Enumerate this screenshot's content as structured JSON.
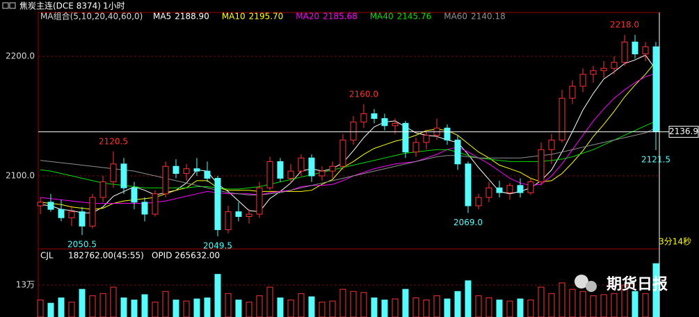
{
  "header": {
    "symbol": "焦炭主连(DCE 8374)",
    "period": "1小时",
    "indicator": "MA组合(5,10,20,40,60,0)",
    "countdown": "3分14秒",
    "watermark": "期货日报"
  },
  "chart_data": [
    {
      "type": "candlestick",
      "up_color": "#ff3232",
      "down_color": "#54fcfc",
      "open": [
        2075,
        2078,
        2072,
        2065,
        2070,
        2058,
        2082,
        2095,
        2110,
        2090,
        2078,
        2068,
        2085,
        2108,
        2102,
        2106,
        2104,
        2098,
        2055,
        2070,
        2066,
        2068,
        2090,
        2112,
        2098,
        2104,
        2115,
        2100,
        2104,
        2108,
        2130,
        2145,
        2152,
        2148,
        2142,
        2144,
        2120,
        2128,
        2134,
        2140,
        2130,
        2110,
        2075,
        2082,
        2090,
        2086,
        2092,
        2086,
        2095,
        2122,
        2130,
        2165,
        2175,
        2185,
        2188,
        2190,
        2195,
        2212,
        2202,
        2208
      ],
      "high": [
        2082,
        2085,
        2080,
        2075,
        2074,
        2085,
        2100,
        2120.5,
        2115,
        2095,
        2082,
        2088,
        2112,
        2114,
        2110,
        2115,
        2112,
        2100,
        2075,
        2078,
        2072,
        2095,
        2116,
        2115,
        2110,
        2118,
        2118,
        2108,
        2112,
        2135,
        2150,
        2160,
        2156,
        2152,
        2148,
        2146,
        2132,
        2138,
        2148,
        2143,
        2134,
        2112,
        2085,
        2095,
        2096,
        2094,
        2098,
        2098,
        2128,
        2135,
        2172,
        2180,
        2190,
        2192,
        2196,
        2200,
        2218,
        2218,
        2212,
        2212
      ],
      "low": [
        2068,
        2070,
        2062,
        2058,
        2050.5,
        2056,
        2078,
        2090,
        2085,
        2072,
        2062,
        2066,
        2082,
        2098,
        2096,
        2100,
        2095,
        2049.5,
        2052,
        2062,
        2060,
        2065,
        2088,
        2095,
        2094,
        2100,
        2095,
        2096,
        2098,
        2105,
        2126,
        2140,
        2144,
        2138,
        2135,
        2115,
        2116,
        2122,
        2130,
        2126,
        2105,
        2069,
        2072,
        2078,
        2082,
        2080,
        2082,
        2084,
        2092,
        2110,
        2128,
        2160,
        2170,
        2178,
        2182,
        2185,
        2192,
        2198,
        2196,
        2121.5
      ],
      "close": [
        2078,
        2072,
        2065,
        2070,
        2058,
        2082,
        2095,
        2110,
        2090,
        2078,
        2068,
        2085,
        2108,
        2102,
        2106,
        2104,
        2098,
        2055,
        2070,
        2066,
        2068,
        2090,
        2112,
        2098,
        2104,
        2115,
        2100,
        2104,
        2108,
        2130,
        2145,
        2152,
        2148,
        2142,
        2144,
        2120,
        2128,
        2134,
        2140,
        2130,
        2110,
        2075,
        2082,
        2090,
        2086,
        2092,
        2086,
        2095,
        2122,
        2130,
        2165,
        2175,
        2185,
        2188,
        2190,
        2195,
        2212,
        2202,
        2208,
        2136.9
      ],
      "series": [
        {
          "name": "MA5",
          "color": "#ffffff",
          "current": {
            "value": 2188.9,
            "label": "2188.90"
          },
          "values": [
            2076,
            2075,
            2072,
            2071,
            2069,
            2069,
            2074,
            2083,
            2087,
            2091,
            2088,
            2084,
            2086,
            2088,
            2094,
            2105,
            2104,
            2093,
            2087,
            2079,
            2071,
            2070,
            2081,
            2087,
            2094,
            2104,
            2106,
            2104,
            2106,
            2111,
            2121,
            2132,
            2141,
            2145,
            2146,
            2141,
            2136,
            2134,
            2133,
            2130,
            2128,
            2118,
            2107,
            2097,
            2087,
            2085,
            2087,
            2090,
            2096,
            2105,
            2120,
            2137,
            2155,
            2169,
            2181,
            2187,
            2194,
            2197,
            2201,
            2188.9
          ]
        },
        {
          "name": "MA10",
          "color": "#ffff00",
          "current": {
            "value": 2195.7,
            "label": "2195.70"
          },
          "values": [
            2078,
            2077,
            2076,
            2074,
            2073,
            2072,
            2073,
            2077,
            2079,
            2080,
            2081,
            2082,
            2085,
            2088,
            2090,
            2096,
            2096,
            2090,
            2088,
            2088,
            2088,
            2087,
            2087,
            2087,
            2087,
            2087,
            2088,
            2093,
            2097,
            2107,
            2112,
            2118,
            2123,
            2126,
            2129,
            2131,
            2134,
            2138,
            2139,
            2138,
            2134,
            2127,
            2120,
            2115,
            2109,
            2106,
            2103,
            2098,
            2095,
            2096,
            2102,
            2111,
            2121,
            2133,
            2143,
            2154,
            2166,
            2176,
            2185,
            2195.7
          ]
        },
        {
          "name": "MA20",
          "color": "#ff00ff",
          "current": {
            "value": 2185.68,
            "label": "2185.68"
          },
          "values": [
            2082,
            2081,
            2080,
            2079,
            2078,
            2077,
            2077,
            2077,
            2077,
            2077,
            2077,
            2078,
            2079,
            2081,
            2083,
            2085,
            2087,
            2086,
            2085,
            2085,
            2085,
            2084,
            2086,
            2087,
            2088,
            2091,
            2092,
            2092,
            2093,
            2096,
            2100,
            2103,
            2106,
            2108,
            2110,
            2111,
            2112,
            2115,
            2118,
            2122,
            2124,
            2120,
            2115,
            2110,
            2104,
            2098,
            2094,
            2092,
            2093,
            2100,
            2110,
            2122,
            2134,
            2146,
            2156,
            2165,
            2172,
            2178,
            2183,
            2185.68
          ]
        },
        {
          "name": "MA40",
          "color": "#00e000",
          "current": {
            "value": 2145.76,
            "label": "2145.76"
          },
          "values": [
            2105,
            2104,
            2102,
            2100,
            2098,
            2096,
            2094,
            2093,
            2092,
            2091,
            2090,
            2090,
            2090,
            2090,
            2090,
            2091,
            2091,
            2090,
            2089,
            2089,
            2090,
            2091,
            2093,
            2095,
            2097,
            2099,
            2101,
            2103,
            2105,
            2107,
            2109,
            2111,
            2113,
            2115,
            2117,
            2119,
            2120,
            2121,
            2122,
            2122,
            2120,
            2117,
            2115,
            2114,
            2113,
            2112,
            2112,
            2112,
            2112,
            2113,
            2114,
            2116,
            2119,
            2122,
            2126,
            2130,
            2134,
            2138,
            2142,
            2145.76
          ]
        },
        {
          "name": "MA60",
          "color": "#909090",
          "current": {
            "value": 2140.18,
            "label": "2140.18"
          },
          "values": [
            2113,
            2112,
            2111,
            2110,
            2109,
            2108,
            2107,
            2106,
            2105,
            2104,
            2102,
            2100,
            2098,
            2096,
            2094,
            2092,
            2090,
            2088,
            2086,
            2085,
            2084,
            2084,
            2085,
            2086,
            2088,
            2090,
            2092,
            2094,
            2096,
            2098,
            2100,
            2102,
            2104,
            2106,
            2108,
            2110,
            2112,
            2114,
            2116,
            2117,
            2117,
            2116,
            2115,
            2115,
            2115,
            2115,
            2115,
            2116,
            2117,
            2118,
            2120,
            2122,
            2124,
            2126,
            2128,
            2130,
            2132,
            2134,
            2136,
            2140.18
          ]
        }
      ],
      "ylim": [
        2040.7,
        2235.5
      ],
      "yticks": [
        {
          "value": 2100,
          "label": "2100.0"
        },
        {
          "value": 2200,
          "label": "2200.0"
        }
      ],
      "grid": true,
      "last_price": {
        "value": 2136.9,
        "label": "2136.9"
      },
      "annotations": [
        {
          "value": 2218,
          "label": "2218.0",
          "kind": "high"
        },
        {
          "value": 2160,
          "label": "2160.0",
          "kind": "high"
        },
        {
          "value": 2120.5,
          "label": "2120.5",
          "kind": "high"
        },
        {
          "value": 2050.5,
          "label": "2050.5",
          "kind": "low"
        },
        {
          "value": 2049.5,
          "label": "2049.5",
          "kind": "low"
        },
        {
          "value": 2069,
          "label": "2069.0",
          "kind": "low"
        },
        {
          "value": 2121.5,
          "label": "2121.5",
          "kind": "low"
        }
      ]
    },
    {
      "type": "volume",
      "name": "CJL",
      "summary": "182762.00(45:55)",
      "extra": "OPID 265632.00",
      "values": [
        60000,
        45000,
        70000,
        50000,
        110000,
        80000,
        90000,
        120000,
        70000,
        60000,
        85000,
        50000,
        100000,
        60000,
        55000,
        65000,
        70000,
        180000,
        90000,
        60000,
        50000,
        80000,
        120000,
        70000,
        60000,
        90000,
        75000,
        50000,
        55000,
        110000,
        100000,
        95000,
        70000,
        60000,
        65000,
        110000,
        70000,
        60000,
        80000,
        65000,
        100000,
        150000,
        80000,
        70000,
        60000,
        55000,
        65000,
        60000,
        120000,
        90000,
        140000,
        110000,
        100000,
        80000,
        85000,
        90000,
        130000,
        100000,
        90000,
        230000
      ],
      "ylim": [
        0,
        286000
      ],
      "yticks": [
        {
          "value": 130000,
          "label": "13万"
        }
      ]
    }
  ]
}
